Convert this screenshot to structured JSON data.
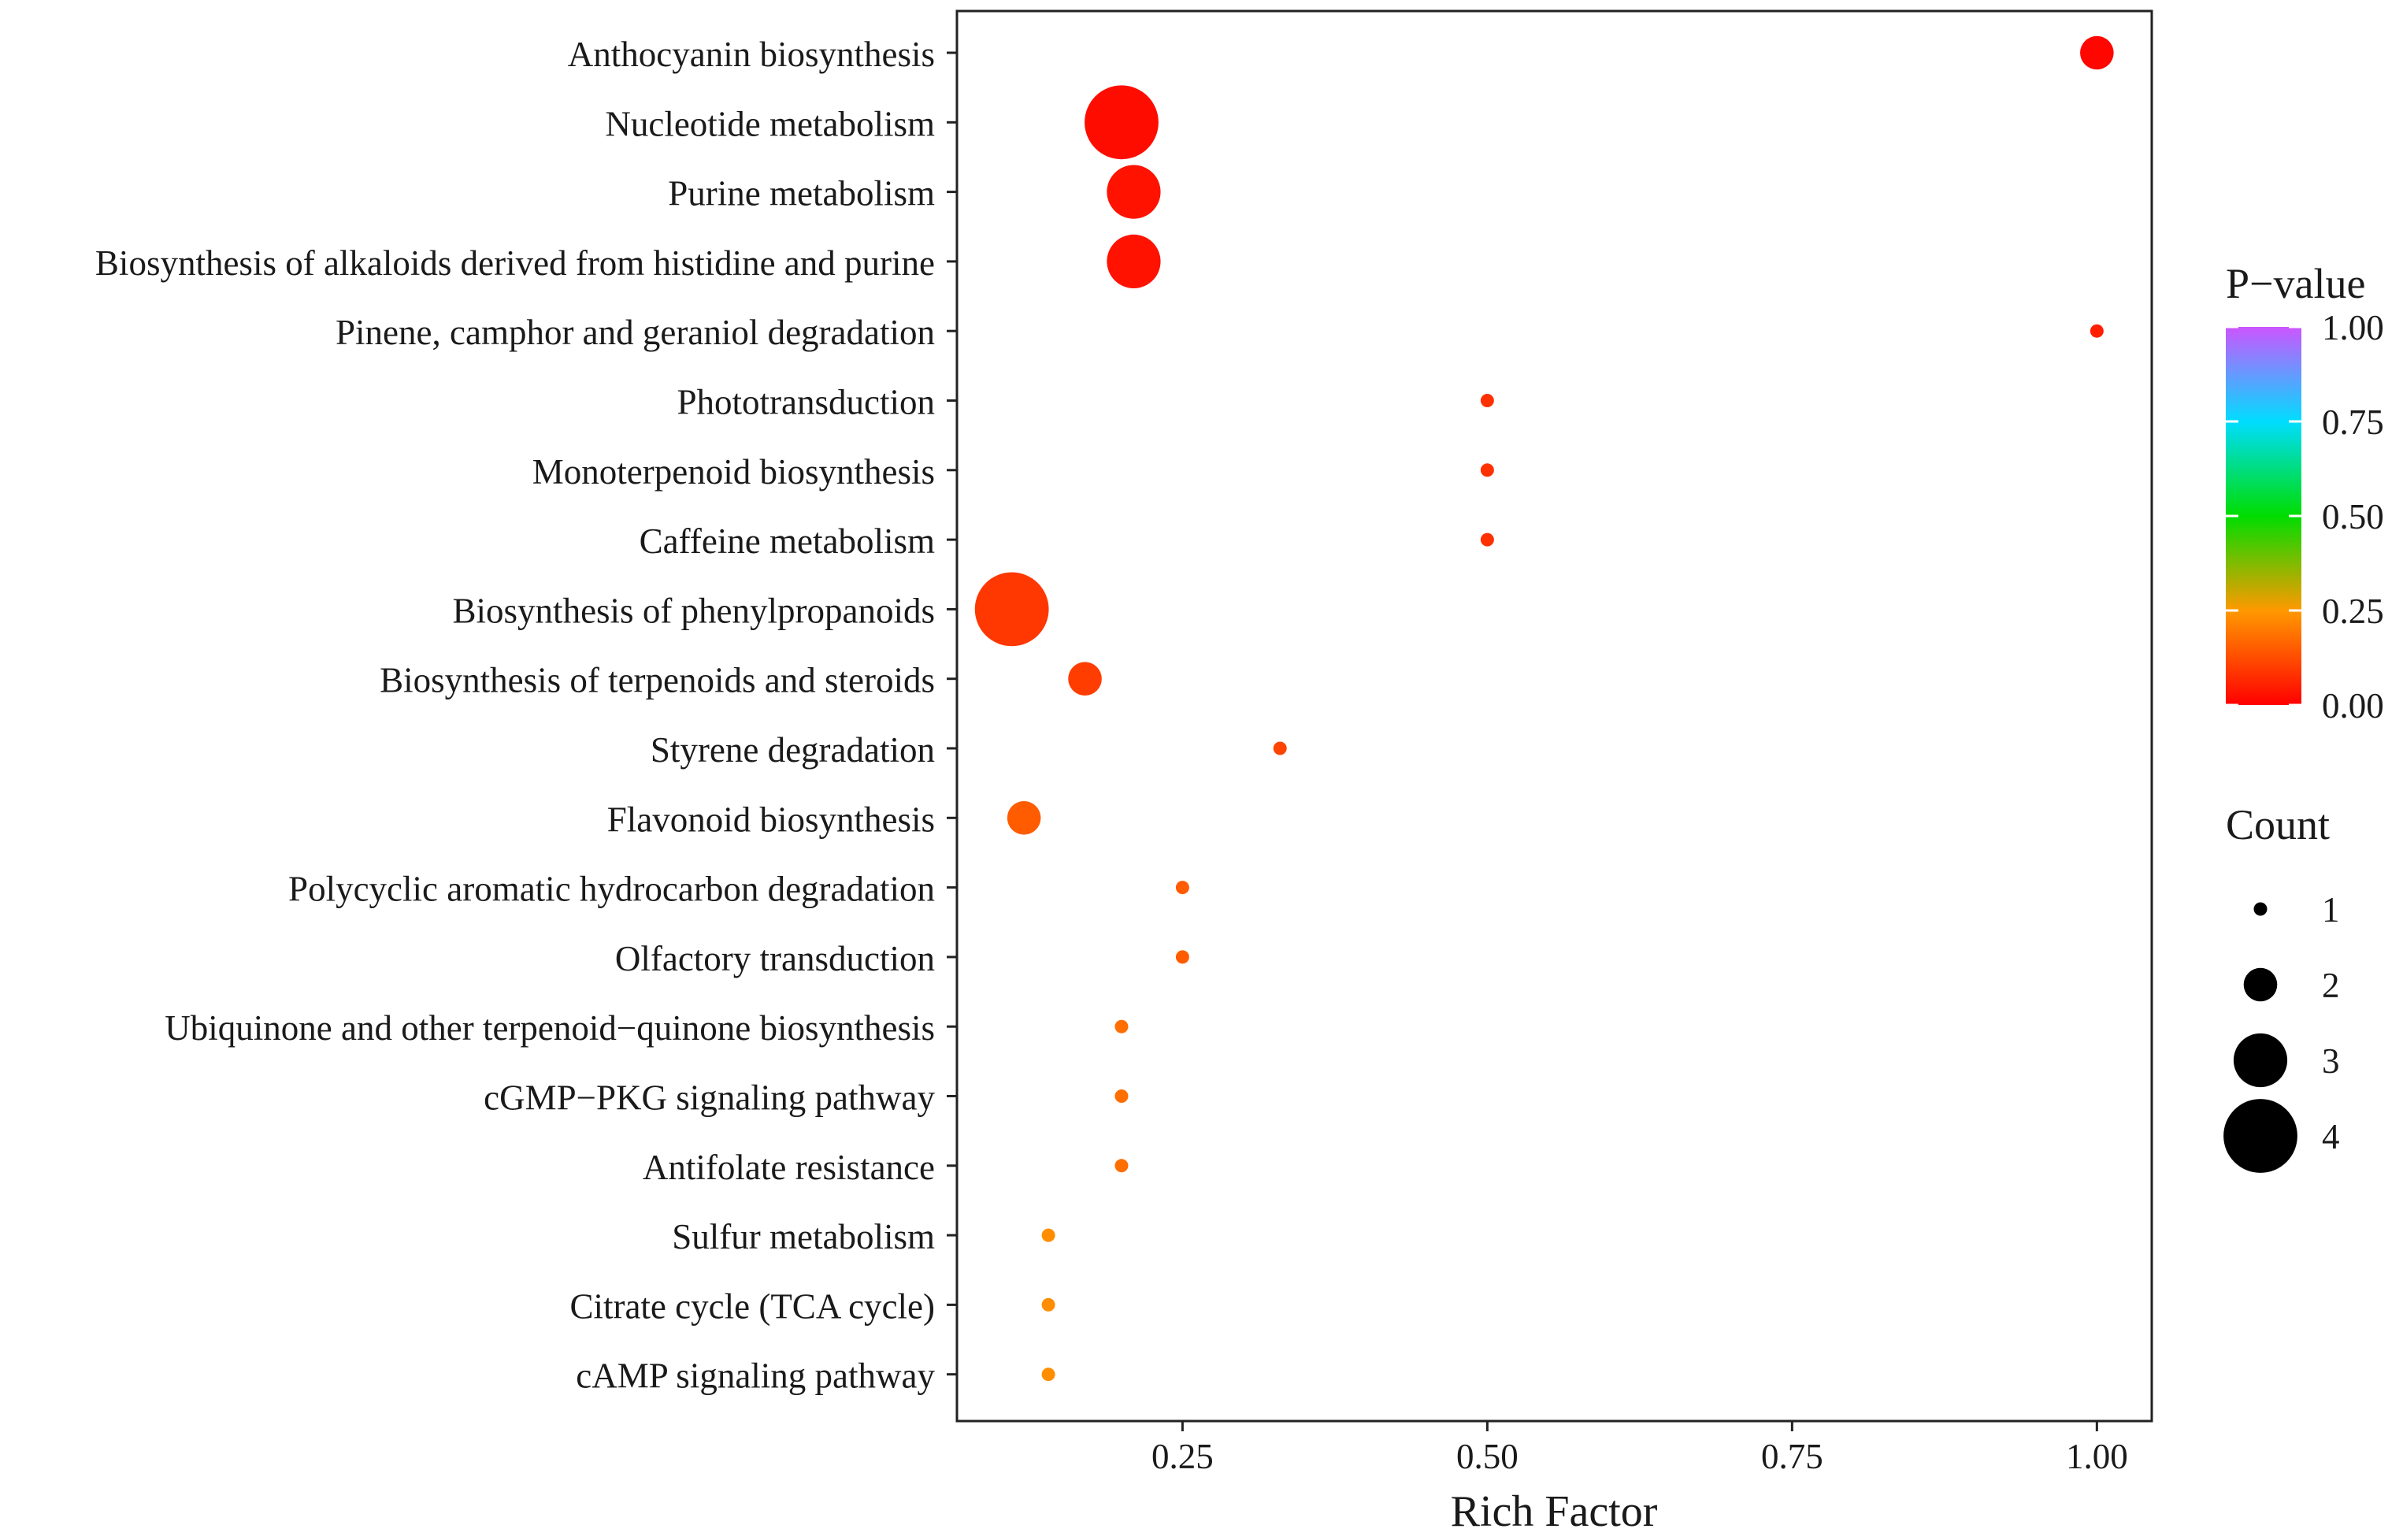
{
  "chart_data": {
    "type": "scatter",
    "title": "",
    "xlabel": "Rich Factor",
    "ylabel": "",
    "xlim": [
      0.065,
      1.045
    ],
    "xticks": [
      {
        "value": 0.25,
        "label": "0.25"
      },
      {
        "value": 0.5,
        "label": "0.50"
      },
      {
        "value": 0.75,
        "label": "0.75"
      },
      {
        "value": 1.0,
        "label": "1.00"
      }
    ],
    "categories": [
      "Anthocyanin biosynthesis",
      "Nucleotide metabolism",
      "Purine metabolism",
      "Biosynthesis of alkaloids derived from histidine and purine",
      "Pinene, camphor and geraniol degradation",
      "Phototransduction",
      "Monoterpenoid biosynthesis",
      "Caffeine metabolism",
      "Biosynthesis of phenylpropanoids",
      "Biosynthesis of terpenoids and steroids",
      "Styrene degradation",
      "Flavonoid biosynthesis",
      "Polycyclic aromatic hydrocarbon degradation",
      "Olfactory transduction",
      "Ubiquinone and other terpenoid−quinone biosynthesis",
      "cGMP−PKG signaling pathway",
      "Antifolate resistance",
      "Sulfur metabolism",
      "Citrate cycle (TCA cycle)",
      "cAMP signaling pathway"
    ],
    "points": [
      {
        "pathway": "Anthocyanin biosynthesis",
        "rich_factor": 1.0,
        "count": 2,
        "p_value": 0.01
      },
      {
        "pathway": "Nucleotide metabolism",
        "rich_factor": 0.2,
        "count": 4,
        "p_value": 0.02
      },
      {
        "pathway": "Purine metabolism",
        "rich_factor": 0.21,
        "count": 3,
        "p_value": 0.03
      },
      {
        "pathway": "Biosynthesis of alkaloids derived from histidine and purine",
        "rich_factor": 0.21,
        "count": 3,
        "p_value": 0.03
      },
      {
        "pathway": "Pinene, camphor and geraniol degradation",
        "rich_factor": 1.0,
        "count": 1,
        "p_value": 0.05
      },
      {
        "pathway": "Phototransduction",
        "rich_factor": 0.5,
        "count": 1,
        "p_value": 0.08
      },
      {
        "pathway": "Monoterpenoid biosynthesis",
        "rich_factor": 0.5,
        "count": 1,
        "p_value": 0.08
      },
      {
        "pathway": "Caffeine metabolism",
        "rich_factor": 0.5,
        "count": 1,
        "p_value": 0.08
      },
      {
        "pathway": "Biosynthesis of phenylpropanoids",
        "rich_factor": 0.11,
        "count": 4,
        "p_value": 0.09
      },
      {
        "pathway": "Biosynthesis of terpenoids and steroids",
        "rich_factor": 0.17,
        "count": 2,
        "p_value": 0.1
      },
      {
        "pathway": "Styrene degradation",
        "rich_factor": 0.33,
        "count": 1,
        "p_value": 0.11
      },
      {
        "pathway": "Flavonoid biosynthesis",
        "rich_factor": 0.12,
        "count": 2,
        "p_value": 0.15
      },
      {
        "pathway": "Polycyclic aromatic hydrocarbon degradation",
        "rich_factor": 0.25,
        "count": 1,
        "p_value": 0.15
      },
      {
        "pathway": "Olfactory transduction",
        "rich_factor": 0.25,
        "count": 1,
        "p_value": 0.15
      },
      {
        "pathway": "Ubiquinone and other terpenoid−quinone biosynthesis",
        "rich_factor": 0.2,
        "count": 1,
        "p_value": 0.18
      },
      {
        "pathway": "cGMP−PKG signaling pathway",
        "rich_factor": 0.2,
        "count": 1,
        "p_value": 0.18
      },
      {
        "pathway": "Antifolate resistance",
        "rich_factor": 0.2,
        "count": 1,
        "p_value": 0.18
      },
      {
        "pathway": "Sulfur metabolism",
        "rich_factor": 0.14,
        "count": 1,
        "p_value": 0.23
      },
      {
        "pathway": "Citrate cycle (TCA cycle)",
        "rich_factor": 0.14,
        "count": 1,
        "p_value": 0.23
      },
      {
        "pathway": "cAMP signaling pathway",
        "rich_factor": 0.14,
        "count": 1,
        "p_value": 0.23
      }
    ],
    "color_legend": {
      "title": "P−value",
      "range": [
        0,
        1
      ],
      "ticks": [
        {
          "value": 1.0,
          "label": "1.00"
        },
        {
          "value": 0.75,
          "label": "0.75"
        },
        {
          "value": 0.5,
          "label": "0.50"
        },
        {
          "value": 0.25,
          "label": "0.25"
        },
        {
          "value": 0.0,
          "label": "0.00"
        }
      ],
      "colors": [
        "#ff0000",
        "#ff9900",
        "#00dd00",
        "#00ddff",
        "#cc55ff"
      ]
    },
    "size_legend": {
      "title": "Count",
      "entries": [
        {
          "value": 1,
          "label": "1"
        },
        {
          "value": 2,
          "label": "2"
        },
        {
          "value": 3,
          "label": "3"
        },
        {
          "value": 4,
          "label": "4"
        }
      ]
    }
  }
}
